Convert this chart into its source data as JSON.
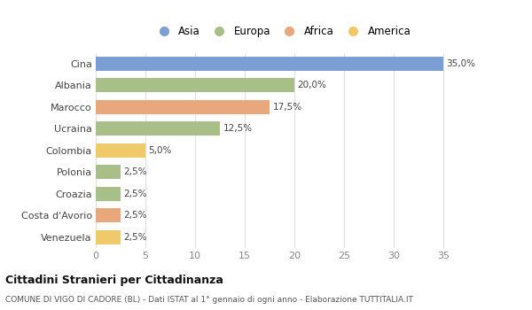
{
  "categories": [
    "Venezuela",
    "Costa d'Avorio",
    "Croazia",
    "Polonia",
    "Colombia",
    "Ucraina",
    "Marocco",
    "Albania",
    "Cina"
  ],
  "values": [
    2.5,
    2.5,
    2.5,
    2.5,
    5.0,
    12.5,
    17.5,
    20.0,
    35.0
  ],
  "colors": [
    "#f0c96b",
    "#e8a87c",
    "#a8bf8a",
    "#a8bf8a",
    "#f0c96b",
    "#a8bf8a",
    "#e8a87c",
    "#a8bf8a",
    "#7b9fd4"
  ],
  "labels": [
    "2,5%",
    "2,5%",
    "2,5%",
    "2,5%",
    "5,0%",
    "12,5%",
    "17,5%",
    "20,0%",
    "35,0%"
  ],
  "xlim": [
    0,
    37.5
  ],
  "xticks": [
    0,
    5,
    10,
    15,
    20,
    25,
    30,
    35
  ],
  "legend_items": [
    {
      "label": "Asia",
      "color": "#7b9fd4"
    },
    {
      "label": "Europa",
      "color": "#a8bf8a"
    },
    {
      "label": "Africa",
      "color": "#e8a87c"
    },
    {
      "label": "America",
      "color": "#f0c96b"
    }
  ],
  "title": "Cittadini Stranieri per Cittadinanza",
  "subtitle": "COMUNE DI VIGO DI CADORE (BL) - Dati ISTAT al 1° gennaio di ogni anno - Elaborazione TUTTITALIA.IT",
  "bg_color": "#ffffff",
  "plot_bg_color": "#ffffff",
  "grid_color": "#e0e0e0",
  "bar_height": 0.65
}
